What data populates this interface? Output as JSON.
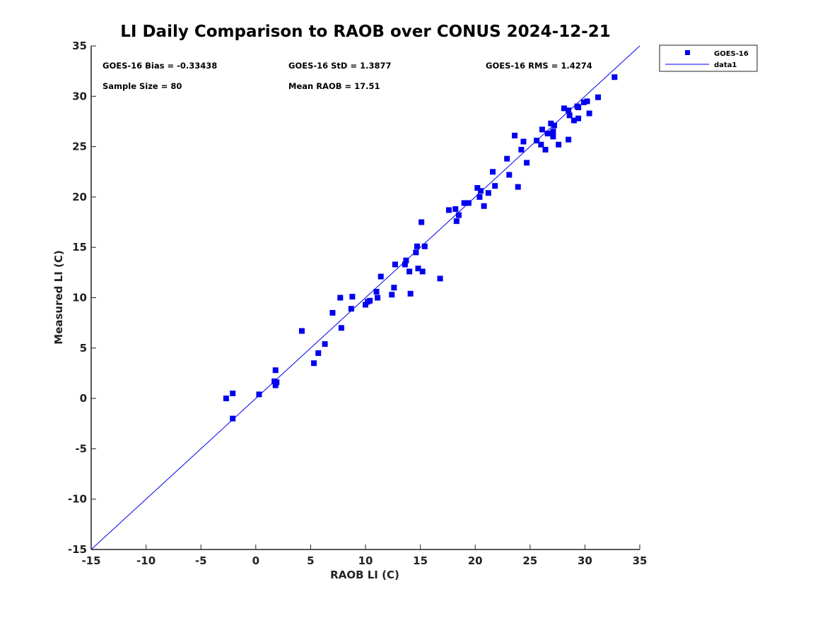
{
  "chart_data": {
    "type": "scatter",
    "title": "LI Daily Comparison to RAOB over CONUS 2024-12-21",
    "xlabel": "RAOB LI (C)",
    "ylabel": "Measured LI (C)",
    "xlim": [
      -15,
      35
    ],
    "ylim": [
      -15,
      35
    ],
    "xticks": [
      -15,
      -10,
      -5,
      0,
      5,
      10,
      15,
      20,
      25,
      30,
      35
    ],
    "yticks": [
      -15,
      -10,
      -5,
      0,
      5,
      10,
      15,
      20,
      25,
      30,
      35
    ],
    "grid": false,
    "legend_position": "outside-top-right",
    "colors": {
      "series": "#0000ee",
      "axis": "#222222"
    },
    "stats": {
      "bias": "GOES-16 Bias = -0.33438",
      "std": "GOES-16 StD = 1.3877",
      "rms": "GOES-16 RMS = 1.4274",
      "sample_size": "Sample Size = 80",
      "mean_raob": "Mean RAOB = 17.51"
    },
    "series": [
      {
        "name": "GOES-16",
        "marker": "square",
        "points": [
          [
            -2.7,
            0.0
          ],
          [
            -2.1,
            0.5
          ],
          [
            -2.1,
            -2.0
          ],
          [
            0.3,
            0.4
          ],
          [
            1.7,
            1.7
          ],
          [
            1.8,
            2.8
          ],
          [
            1.8,
            1.3
          ],
          [
            1.9,
            1.6
          ],
          [
            4.2,
            6.7
          ],
          [
            5.3,
            3.5
          ],
          [
            5.7,
            4.5
          ],
          [
            6.3,
            5.4
          ],
          [
            7.0,
            8.5
          ],
          [
            7.7,
            10.0
          ],
          [
            7.8,
            7.0
          ],
          [
            8.7,
            8.9
          ],
          [
            8.8,
            10.1
          ],
          [
            10.0,
            9.3
          ],
          [
            10.2,
            9.6
          ],
          [
            10.4,
            9.7
          ],
          [
            11.0,
            10.6
          ],
          [
            11.1,
            10.0
          ],
          [
            11.4,
            12.1
          ],
          [
            12.4,
            10.3
          ],
          [
            12.6,
            11.0
          ],
          [
            12.7,
            13.3
          ],
          [
            13.6,
            13.3
          ],
          [
            13.7,
            13.7
          ],
          [
            14.0,
            12.6
          ],
          [
            14.1,
            10.4
          ],
          [
            14.6,
            14.5
          ],
          [
            14.7,
            15.1
          ],
          [
            14.8,
            12.9
          ],
          [
            15.1,
            17.5
          ],
          [
            15.2,
            12.6
          ],
          [
            15.4,
            15.1
          ],
          [
            16.8,
            11.9
          ],
          [
            17.6,
            18.7
          ],
          [
            18.2,
            18.8
          ],
          [
            18.3,
            17.6
          ],
          [
            18.5,
            18.2
          ],
          [
            19.0,
            19.4
          ],
          [
            19.4,
            19.4
          ],
          [
            20.2,
            20.9
          ],
          [
            20.4,
            20.0
          ],
          [
            20.5,
            20.6
          ],
          [
            20.8,
            19.1
          ],
          [
            21.2,
            20.4
          ],
          [
            21.6,
            22.5
          ],
          [
            21.8,
            21.1
          ],
          [
            22.9,
            23.8
          ],
          [
            23.1,
            22.2
          ],
          [
            23.6,
            26.1
          ],
          [
            23.9,
            21.0
          ],
          [
            24.2,
            24.7
          ],
          [
            24.4,
            25.5
          ],
          [
            24.7,
            23.4
          ],
          [
            25.6,
            25.6
          ],
          [
            26.0,
            25.2
          ],
          [
            26.1,
            26.7
          ],
          [
            26.4,
            24.7
          ],
          [
            26.6,
            26.3
          ],
          [
            26.9,
            27.3
          ],
          [
            27.1,
            26.5
          ],
          [
            27.1,
            26.0
          ],
          [
            27.2,
            27.1
          ],
          [
            27.6,
            25.2
          ],
          [
            28.1,
            28.8
          ],
          [
            28.5,
            25.7
          ],
          [
            28.5,
            28.6
          ],
          [
            28.6,
            28.1
          ],
          [
            29.0,
            27.6
          ],
          [
            29.3,
            29.0
          ],
          [
            29.4,
            27.8
          ],
          [
            29.4,
            28.9
          ],
          [
            29.9,
            29.4
          ],
          [
            30.2,
            29.5
          ],
          [
            30.4,
            28.3
          ],
          [
            31.2,
            29.9
          ],
          [
            32.7,
            31.9
          ]
        ]
      },
      {
        "name": "data1",
        "type": "line",
        "x": [
          -15,
          35
        ],
        "y": [
          -15,
          35
        ]
      }
    ]
  }
}
